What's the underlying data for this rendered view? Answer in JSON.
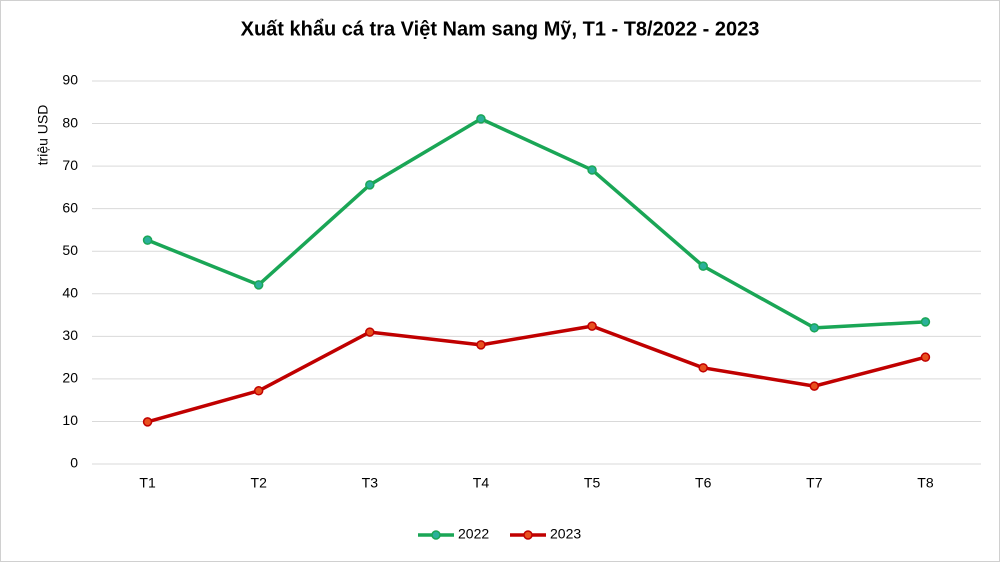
{
  "chart_data": {
    "type": "line",
    "title": "Xuất khẩu cá tra Việt Nam sang Mỹ, T1 - T8/2022 - 2023",
    "y_label": "triệu USD",
    "categories": [
      "T1",
      "T2",
      "T3",
      "T4",
      "T5",
      "T6",
      "T7",
      "T8"
    ],
    "series": [
      {
        "name": "2022",
        "color": "#1aa656",
        "marker_color": "#2bb09a",
        "values": [
          52.6,
          42.1,
          65.6,
          81.1,
          69.1,
          46.5,
          32.0,
          33.4
        ]
      },
      {
        "name": "2023",
        "color": "#c00000",
        "marker_color": "#e8501e",
        "values": [
          9.9,
          17.2,
          31.0,
          28.0,
          32.4,
          22.6,
          18.3,
          25.1
        ]
      }
    ],
    "ylim": [
      0,
      90
    ],
    "yticks": [
      0,
      10,
      20,
      30,
      40,
      50,
      60,
      70,
      80,
      90
    ],
    "grid": true,
    "legend": "bottom"
  }
}
